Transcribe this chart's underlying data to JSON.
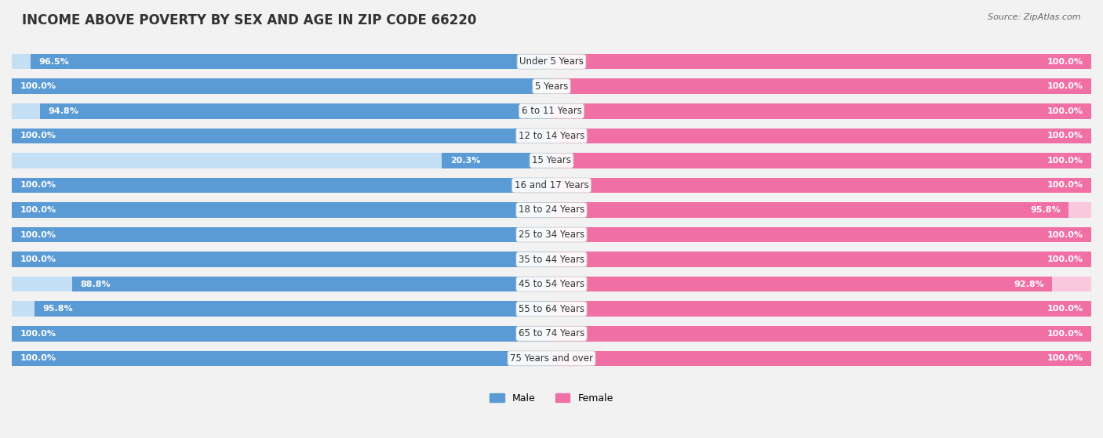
{
  "title": "INCOME ABOVE POVERTY BY SEX AND AGE IN ZIP CODE 66220",
  "source": "Source: ZipAtlas.com",
  "categories": [
    "Under 5 Years",
    "5 Years",
    "6 to 11 Years",
    "12 to 14 Years",
    "15 Years",
    "16 and 17 Years",
    "18 to 24 Years",
    "25 to 34 Years",
    "35 to 44 Years",
    "45 to 54 Years",
    "55 to 64 Years",
    "65 to 74 Years",
    "75 Years and over"
  ],
  "male_values": [
    96.5,
    100.0,
    94.8,
    100.0,
    20.3,
    100.0,
    100.0,
    100.0,
    100.0,
    88.8,
    95.8,
    100.0,
    100.0
  ],
  "female_values": [
    100.0,
    100.0,
    100.0,
    100.0,
    100.0,
    100.0,
    95.8,
    100.0,
    100.0,
    92.8,
    100.0,
    100.0,
    100.0
  ],
  "male_color": "#5b9bd5",
  "male_light_color": "#c5dff5",
  "female_color": "#f06fa4",
  "female_light_color": "#f9c8dc",
  "background_color": "#f2f2f2",
  "row_bg_color": "#e6e6e6",
  "title_fontsize": 12,
  "label_fontsize": 8.5,
  "value_fontsize": 8,
  "legend_fontsize": 9,
  "source_fontsize": 8
}
